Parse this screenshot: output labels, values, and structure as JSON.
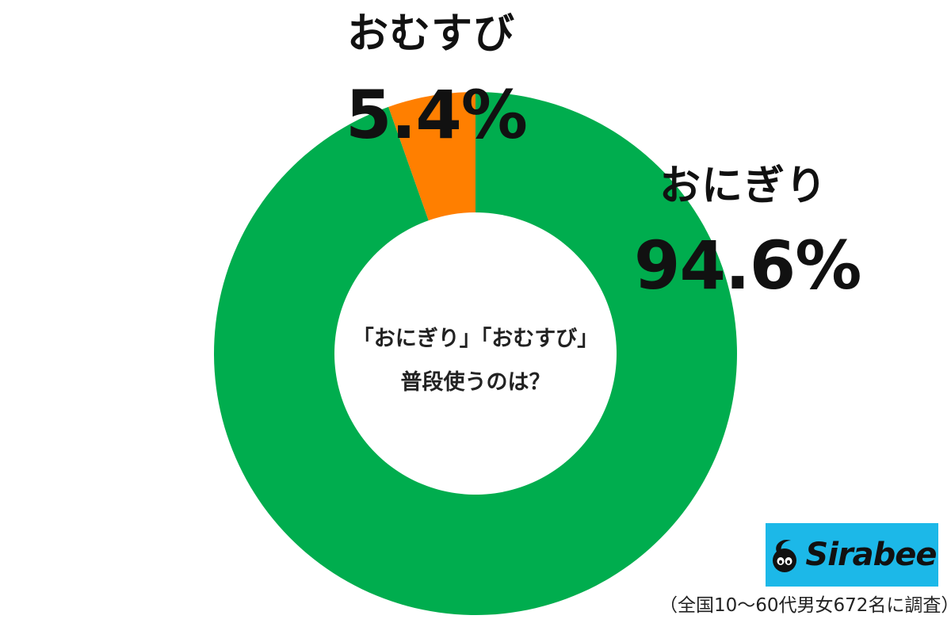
{
  "chart_data": {
    "type": "pie",
    "variant": "donut",
    "title": "「おにぎり」「おむすび」 普段使うのは？",
    "slices": [
      {
        "label": "おにぎり",
        "value": 94.6,
        "display": "94.6%",
        "color": "#00ad4e"
      },
      {
        "label": "おむすび",
        "value": 5.4,
        "display": "5.4%",
        "color": "#ff7f00"
      }
    ],
    "legend": "none"
  },
  "center_text": {
    "line1": "「おにぎり」「おむすび」",
    "line2": "普段使うのは？"
  },
  "brand": {
    "name": "Sirabee",
    "icon": "sirabee-logo-icon",
    "background": "#1cb8e8"
  },
  "footnote": "（全国10～60代男女672名に調査）"
}
